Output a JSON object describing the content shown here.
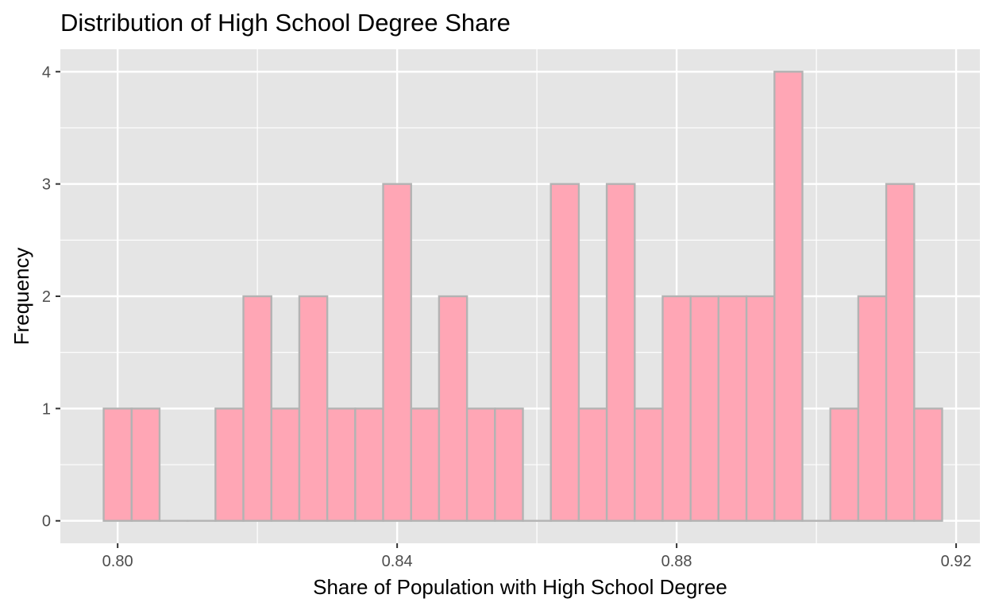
{
  "chart_data": {
    "type": "bar",
    "title": "Distribution of High School Degree Share",
    "xlabel": "Share of Population with High School Degree",
    "ylabel": "Frequency",
    "x_ticks": [
      "0.80",
      "0.84",
      "0.88",
      "0.92"
    ],
    "y_ticks": [
      "0",
      "1",
      "2",
      "3",
      "4"
    ],
    "bin_width": 0.004,
    "bins": [
      {
        "x": 0.8,
        "count": 1
      },
      {
        "x": 0.804,
        "count": 1
      },
      {
        "x": 0.808,
        "count": 0
      },
      {
        "x": 0.812,
        "count": 0
      },
      {
        "x": 0.816,
        "count": 1
      },
      {
        "x": 0.82,
        "count": 2
      },
      {
        "x": 0.824,
        "count": 1
      },
      {
        "x": 0.828,
        "count": 2
      },
      {
        "x": 0.832,
        "count": 1
      },
      {
        "x": 0.836,
        "count": 1
      },
      {
        "x": 0.84,
        "count": 3
      },
      {
        "x": 0.844,
        "count": 1
      },
      {
        "x": 0.848,
        "count": 2
      },
      {
        "x": 0.852,
        "count": 1
      },
      {
        "x": 0.856,
        "count": 1
      },
      {
        "x": 0.86,
        "count": 0
      },
      {
        "x": 0.864,
        "count": 3
      },
      {
        "x": 0.868,
        "count": 1
      },
      {
        "x": 0.872,
        "count": 3
      },
      {
        "x": 0.876,
        "count": 1
      },
      {
        "x": 0.88,
        "count": 2
      },
      {
        "x": 0.884,
        "count": 2
      },
      {
        "x": 0.888,
        "count": 2
      },
      {
        "x": 0.892,
        "count": 2
      },
      {
        "x": 0.896,
        "count": 4
      },
      {
        "x": 0.9,
        "count": 0
      },
      {
        "x": 0.904,
        "count": 1
      },
      {
        "x": 0.908,
        "count": 2
      },
      {
        "x": 0.912,
        "count": 3
      },
      {
        "x": 0.916,
        "count": 1
      }
    ],
    "xlim": [
      0.7918,
      0.9234
    ],
    "ylim": [
      -0.2,
      4.2
    ],
    "grid": true,
    "colors": {
      "bar_fill": "#ffa6b5",
      "bar_outline": "#b3b3b3",
      "panel": "#e5e5e5",
      "grid": "#ffffff"
    }
  }
}
